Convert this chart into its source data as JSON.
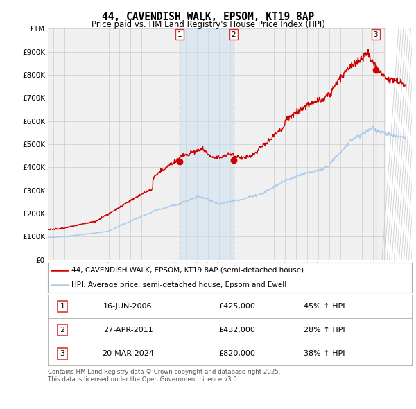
{
  "title": "44, CAVENDISH WALK, EPSOM, KT19 8AP",
  "subtitle": "Price paid vs. HM Land Registry's House Price Index (HPI)",
  "legend_line1": "44, CAVENDISH WALK, EPSOM, KT19 8AP (semi-detached house)",
  "legend_line2": "HPI: Average price, semi-detached house, Epsom and Ewell",
  "transactions": [
    {
      "num": 1,
      "date": "16-JUN-2006",
      "price": 425000,
      "hpi_pct": "45% ↑ HPI",
      "x_year": 2006.46
    },
    {
      "num": 2,
      "date": "27-APR-2011",
      "price": 432000,
      "hpi_pct": "28% ↑ HPI",
      "x_year": 2011.32
    },
    {
      "num": 3,
      "date": "20-MAR-2024",
      "price": 820000,
      "hpi_pct": "38% ↑ HPI",
      "x_year": 2024.22
    }
  ],
  "footer": "Contains HM Land Registry data © Crown copyright and database right 2025.\nThis data is licensed under the Open Government Licence v3.0.",
  "hpi_color": "#aaccee",
  "price_color": "#cc0000",
  "vline_color": "#dd3333",
  "bg_color": "#ffffff",
  "grid_color": "#cccccc",
  "plot_bg": "#f0f0f0",
  "shade_between_color": "#ddeeff",
  "hatch_color": "#dddddd",
  "ylim": [
    0,
    1000000
  ],
  "xlim_start": 1994.5,
  "xlim_end": 2027.5
}
